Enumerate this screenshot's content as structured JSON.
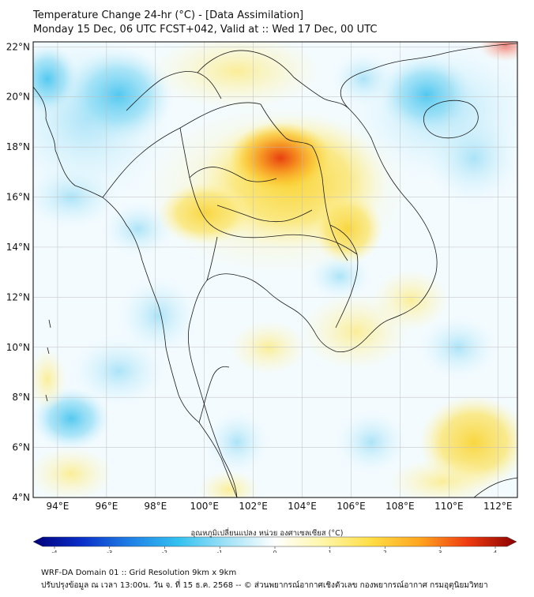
{
  "header": {
    "title_line1": "Temperature Change 24-hr (°C) - [Data Assimilation]",
    "title_line2": "Monday 15 Dec, 06 UTC FCST+042, Valid at :: Wed 17 Dec, 00 UTC"
  },
  "map": {
    "lat_labels": [
      "22°N",
      "20°N",
      "18°N",
      "16°N",
      "14°N",
      "12°N",
      "10°N",
      "8°N",
      "6°N",
      "4°N"
    ],
    "lon_labels": [
      "94°E",
      "96°E",
      "98°E",
      "100°E",
      "102°E",
      "104°E",
      "106°E",
      "108°E",
      "110°E",
      "112°E"
    ],
    "lat_values": [
      22,
      20,
      18,
      16,
      14,
      12,
      10,
      8,
      6,
      4
    ],
    "lon_values": [
      94,
      96,
      98,
      100,
      102,
      104,
      106,
      108,
      110,
      112
    ],
    "extent": {
      "lon_min": 93,
      "lon_max": 112.8,
      "lat_min": 4,
      "lat_max": 22.2
    }
  },
  "colorbar": {
    "title": "อุณหภูมิเปลี่ยนแปลง หน่วย องศาเซลเซียส (°C)",
    "ticks": [
      "-4",
      "-3",
      "-2",
      "-1",
      "0",
      "1",
      "2",
      "3",
      "4"
    ],
    "tick_values": [
      -4,
      -3,
      -2,
      -1,
      0,
      1,
      2,
      3,
      4
    ],
    "min": -4,
    "max": 4,
    "stops": [
      "#00007a",
      "#0a2fc8",
      "#1f7fe6",
      "#33c1f0",
      "#9fe2f7",
      "#ffffff",
      "#fff6a8",
      "#ffdd44",
      "#ffa51f",
      "#ee3a10",
      "#8a0000"
    ]
  },
  "footer": {
    "line1": "WRF-DA Domain 01 :: Grid Resolution 9km x 9km",
    "line2": "ปรับปรุงข้อมูล ณ เวลา 13:00น. วัน จ. ที่ 15 ธ.ค. 2568 -- © ส่วนพยากรณ์อากาศเชิงตัวเลข กองพยากรณ์อากาศ กรมอุตุนิยมวิทยา"
  }
}
